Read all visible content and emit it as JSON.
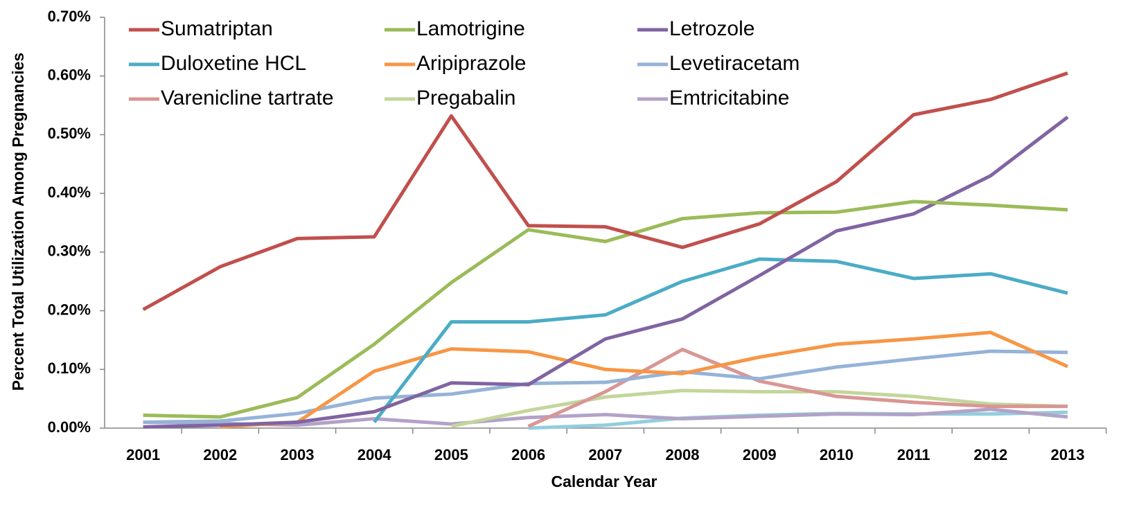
{
  "chart_data": {
    "type": "line",
    "xlabel": "Calendar Year",
    "ylabel": "Percent Total Utilization Among Pregnancies",
    "categories": [
      "2001",
      "2002",
      "2003",
      "2004",
      "2005",
      "2006",
      "2007",
      "2008",
      "2009",
      "2010",
      "2011",
      "2012",
      "2013"
    ],
    "ylim": [
      0,
      0.7
    ],
    "yticks": [
      {
        "value": 0,
        "label": "0.00%"
      },
      {
        "value": 0.1,
        "label": "0.10%"
      },
      {
        "value": 0.2,
        "label": "0.20%"
      },
      {
        "value": 0.3,
        "label": "0.30%"
      },
      {
        "value": 0.4,
        "label": "0.40%"
      },
      {
        "value": 0.5,
        "label": "0.50%"
      },
      {
        "value": 0.6,
        "label": "0.60%"
      },
      {
        "value": 0.7,
        "label": "0.70%"
      }
    ],
    "legend": "top-left",
    "series": [
      {
        "name": "Sumatriptan",
        "color": "#c0504d",
        "values": [
          0.202,
          0.275,
          0.323,
          0.326,
          0.532,
          0.345,
          0.343,
          0.308,
          0.348,
          0.42,
          0.534,
          0.56,
          0.605
        ]
      },
      {
        "name": "Lamotrigine",
        "color": "#9bbb59",
        "values": [
          0.022,
          0.019,
          0.052,
          0.143,
          0.248,
          0.338,
          0.318,
          0.357,
          0.367,
          0.368,
          0.386,
          0.38,
          0.372
        ]
      },
      {
        "name": "Letrozole",
        "color": "#8064a2",
        "values": [
          0.002,
          0.005,
          0.01,
          0.028,
          0.077,
          0.074,
          0.152,
          0.186,
          0.26,
          0.336,
          0.365,
          0.43,
          0.53
        ]
      },
      {
        "name": "Duloxetine HCL",
        "color": "#4bacc6",
        "values": [
          null,
          null,
          null,
          0.01,
          0.181,
          0.181,
          0.193,
          0.25,
          0.288,
          0.284,
          0.255,
          0.263,
          0.23
        ]
      },
      {
        "name": "Aripiprazole",
        "color": "#f79646",
        "values": [
          null,
          0.002,
          0.01,
          0.097,
          0.135,
          0.13,
          0.1,
          0.093,
          0.121,
          0.143,
          0.152,
          0.163,
          0.105
        ]
      },
      {
        "name": "Levetiracetam",
        "color": "#95b3d7",
        "values": [
          0.01,
          0.012,
          0.025,
          0.051,
          0.058,
          0.076,
          0.078,
          0.096,
          0.084,
          0.104,
          0.118,
          0.131,
          0.129
        ]
      },
      {
        "name": "Varenicline tartrate",
        "color": "#d99694",
        "values": [
          null,
          null,
          null,
          null,
          null,
          0.003,
          0.062,
          0.134,
          0.08,
          0.054,
          0.044,
          0.037,
          0.037
        ]
      },
      {
        "name": "Pregabalin",
        "color": "#c3d69b",
        "values": [
          null,
          null,
          null,
          null,
          0.003,
          0.03,
          0.053,
          0.064,
          0.062,
          0.062,
          0.054,
          0.041,
          0.037
        ]
      },
      {
        "name": "Emtricitabine",
        "color": "#b3a2c7",
        "values": [
          0.01,
          0.008,
          0.005,
          0.016,
          0.007,
          0.018,
          0.023,
          0.016,
          0.02,
          0.024,
          0.023,
          0.032,
          0.019
        ]
      },
      {
        "color": "#93cddd",
        "values": [
          null,
          null,
          null,
          null,
          null,
          0,
          0.005,
          0.017,
          0.022,
          0.025,
          0.024,
          0.024,
          0.027
        ]
      }
    ]
  }
}
